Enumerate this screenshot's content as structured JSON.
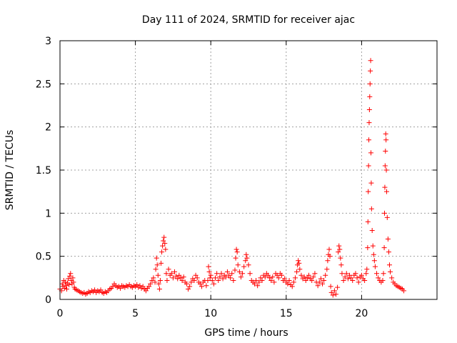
{
  "chart_data": {
    "type": "scatter",
    "title": "Day 111 of 2024, SRMTID for receiver ajac",
    "xlabel": "GPS time / hours",
    "ylabel": "SRMTID / TECUs",
    "xlim": [
      0,
      25
    ],
    "ylim": [
      0,
      3
    ],
    "grid": true,
    "marker": "+",
    "marker_color": "#ff0000",
    "x_ticks": [
      {
        "value": 0,
        "label": "0"
      },
      {
        "value": 5,
        "label": "5"
      },
      {
        "value": 10,
        "label": "10"
      },
      {
        "value": 15,
        "label": "15"
      },
      {
        "value": 20,
        "label": "20"
      }
    ],
    "y_ticks": [
      {
        "value": 0,
        "label": "0"
      },
      {
        "value": 0.5,
        "label": "0.5"
      },
      {
        "value": 1,
        "label": "1"
      },
      {
        "value": 1.5,
        "label": "1.5"
      },
      {
        "value": 2,
        "label": "2"
      },
      {
        "value": 2.5,
        "label": "2.5"
      },
      {
        "value": 3,
        "label": "3"
      }
    ],
    "series": [
      {
        "name": "SRMTID",
        "points": [
          [
            0.0,
            0.12
          ],
          [
            0.1,
            0.1
          ],
          [
            0.15,
            0.18
          ],
          [
            0.2,
            0.15
          ],
          [
            0.25,
            0.22
          ],
          [
            0.3,
            0.13
          ],
          [
            0.35,
            0.2
          ],
          [
            0.4,
            0.16
          ],
          [
            0.45,
            0.12
          ],
          [
            0.5,
            0.19
          ],
          [
            0.55,
            0.24
          ],
          [
            0.6,
            0.17
          ],
          [
            0.65,
            0.27
          ],
          [
            0.7,
            0.3
          ],
          [
            0.75,
            0.22
          ],
          [
            0.8,
            0.18
          ],
          [
            0.85,
            0.25
          ],
          [
            0.9,
            0.2
          ],
          [
            0.95,
            0.14
          ],
          [
            1.0,
            0.12
          ],
          [
            1.1,
            0.11
          ],
          [
            1.2,
            0.1
          ],
          [
            1.3,
            0.09
          ],
          [
            1.4,
            0.08
          ],
          [
            1.5,
            0.07
          ],
          [
            1.6,
            0.08
          ],
          [
            1.7,
            0.06
          ],
          [
            1.8,
            0.07
          ],
          [
            1.9,
            0.09
          ],
          [
            2.0,
            0.08
          ],
          [
            2.1,
            0.1
          ],
          [
            2.2,
            0.09
          ],
          [
            2.3,
            0.11
          ],
          [
            2.4,
            0.08
          ],
          [
            2.5,
            0.1
          ],
          [
            2.6,
            0.09
          ],
          [
            2.7,
            0.11
          ],
          [
            2.8,
            0.08
          ],
          [
            2.9,
            0.07
          ],
          [
            3.0,
            0.09
          ],
          [
            3.1,
            0.08
          ],
          [
            3.2,
            0.1
          ],
          [
            3.3,
            0.12
          ],
          [
            3.4,
            0.13
          ],
          [
            3.5,
            0.15
          ],
          [
            3.6,
            0.18
          ],
          [
            3.7,
            0.16
          ],
          [
            3.8,
            0.14
          ],
          [
            3.9,
            0.15
          ],
          [
            4.0,
            0.13
          ],
          [
            4.1,
            0.16
          ],
          [
            4.2,
            0.15
          ],
          [
            4.3,
            0.14
          ],
          [
            4.4,
            0.16
          ],
          [
            4.5,
            0.15
          ],
          [
            4.6,
            0.17
          ],
          [
            4.7,
            0.15
          ],
          [
            4.8,
            0.14
          ],
          [
            4.9,
            0.16
          ],
          [
            5.0,
            0.15
          ],
          [
            5.1,
            0.17
          ],
          [
            5.2,
            0.14
          ],
          [
            5.3,
            0.16
          ],
          [
            5.4,
            0.13
          ],
          [
            5.5,
            0.15
          ],
          [
            5.6,
            0.12
          ],
          [
            5.7,
            0.1
          ],
          [
            5.8,
            0.13
          ],
          [
            5.9,
            0.15
          ],
          [
            6.0,
            0.18
          ],
          [
            6.1,
            0.22
          ],
          [
            6.2,
            0.25
          ],
          [
            6.3,
            0.2
          ],
          [
            6.35,
            0.35
          ],
          [
            6.4,
            0.48
          ],
          [
            6.45,
            0.4
          ],
          [
            6.5,
            0.28
          ],
          [
            6.55,
            0.18
          ],
          [
            6.6,
            0.12
          ],
          [
            6.65,
            0.22
          ],
          [
            6.7,
            0.42
          ],
          [
            6.75,
            0.55
          ],
          [
            6.8,
            0.62
          ],
          [
            6.85,
            0.68
          ],
          [
            6.9,
            0.72
          ],
          [
            6.95,
            0.65
          ],
          [
            7.0,
            0.58
          ],
          [
            7.05,
            0.3
          ],
          [
            7.1,
            0.22
          ],
          [
            7.2,
            0.35
          ],
          [
            7.3,
            0.28
          ],
          [
            7.4,
            0.3
          ],
          [
            7.5,
            0.25
          ],
          [
            7.6,
            0.32
          ],
          [
            7.7,
            0.27
          ],
          [
            7.8,
            0.24
          ],
          [
            7.9,
            0.28
          ],
          [
            8.0,
            0.25
          ],
          [
            8.1,
            0.22
          ],
          [
            8.2,
            0.26
          ],
          [
            8.3,
            0.2
          ],
          [
            8.4,
            0.18
          ],
          [
            8.5,
            0.12
          ],
          [
            8.6,
            0.15
          ],
          [
            8.7,
            0.2
          ],
          [
            8.8,
            0.24
          ],
          [
            8.9,
            0.22
          ],
          [
            9.0,
            0.28
          ],
          [
            9.1,
            0.25
          ],
          [
            9.2,
            0.2
          ],
          [
            9.3,
            0.18
          ],
          [
            9.4,
            0.15
          ],
          [
            9.5,
            0.2
          ],
          [
            9.6,
            0.22
          ],
          [
            9.7,
            0.16
          ],
          [
            9.8,
            0.22
          ],
          [
            9.85,
            0.38
          ],
          [
            9.9,
            0.32
          ],
          [
            9.95,
            0.25
          ],
          [
            10.0,
            0.28
          ],
          [
            10.1,
            0.22
          ],
          [
            10.2,
            0.18
          ],
          [
            10.3,
            0.25
          ],
          [
            10.4,
            0.3
          ],
          [
            10.5,
            0.22
          ],
          [
            10.6,
            0.26
          ],
          [
            10.7,
            0.3
          ],
          [
            10.8,
            0.24
          ],
          [
            10.9,
            0.28
          ],
          [
            11.0,
            0.26
          ],
          [
            11.1,
            0.32
          ],
          [
            11.2,
            0.28
          ],
          [
            11.3,
            0.25
          ],
          [
            11.4,
            0.3
          ],
          [
            11.5,
            0.22
          ],
          [
            11.6,
            0.34
          ],
          [
            11.65,
            0.48
          ],
          [
            11.7,
            0.58
          ],
          [
            11.75,
            0.55
          ],
          [
            11.8,
            0.4
          ],
          [
            11.9,
            0.32
          ],
          [
            12.0,
            0.26
          ],
          [
            12.1,
            0.3
          ],
          [
            12.2,
            0.38
          ],
          [
            12.3,
            0.45
          ],
          [
            12.35,
            0.52
          ],
          [
            12.4,
            0.48
          ],
          [
            12.5,
            0.4
          ],
          [
            12.6,
            0.3
          ],
          [
            12.7,
            0.22
          ],
          [
            12.8,
            0.2
          ],
          [
            12.9,
            0.18
          ],
          [
            13.0,
            0.22
          ],
          [
            13.1,
            0.16
          ],
          [
            13.2,
            0.2
          ],
          [
            13.3,
            0.25
          ],
          [
            13.4,
            0.22
          ],
          [
            13.5,
            0.28
          ],
          [
            13.6,
            0.26
          ],
          [
            13.7,
            0.3
          ],
          [
            13.8,
            0.28
          ],
          [
            13.9,
            0.25
          ],
          [
            14.0,
            0.22
          ],
          [
            14.1,
            0.26
          ],
          [
            14.2,
            0.2
          ],
          [
            14.3,
            0.3
          ],
          [
            14.4,
            0.28
          ],
          [
            14.5,
            0.25
          ],
          [
            14.6,
            0.3
          ],
          [
            14.7,
            0.28
          ],
          [
            14.8,
            0.22
          ],
          [
            14.9,
            0.24
          ],
          [
            15.0,
            0.2
          ],
          [
            15.1,
            0.18
          ],
          [
            15.2,
            0.22
          ],
          [
            15.3,
            0.17
          ],
          [
            15.4,
            0.15
          ],
          [
            15.5,
            0.2
          ],
          [
            15.6,
            0.25
          ],
          [
            15.7,
            0.32
          ],
          [
            15.75,
            0.4
          ],
          [
            15.8,
            0.45
          ],
          [
            15.85,
            0.42
          ],
          [
            15.9,
            0.35
          ],
          [
            16.0,
            0.28
          ],
          [
            16.1,
            0.24
          ],
          [
            16.2,
            0.26
          ],
          [
            16.3,
            0.22
          ],
          [
            16.4,
            0.25
          ],
          [
            16.5,
            0.28
          ],
          [
            16.6,
            0.24
          ],
          [
            16.7,
            0.22
          ],
          [
            16.8,
            0.26
          ],
          [
            16.9,
            0.3
          ],
          [
            17.0,
            0.2
          ],
          [
            17.1,
            0.16
          ],
          [
            17.2,
            0.2
          ],
          [
            17.3,
            0.24
          ],
          [
            17.4,
            0.18
          ],
          [
            17.5,
            0.22
          ],
          [
            17.6,
            0.28
          ],
          [
            17.7,
            0.35
          ],
          [
            17.75,
            0.45
          ],
          [
            17.8,
            0.52
          ],
          [
            17.85,
            0.58
          ],
          [
            17.9,
            0.5
          ],
          [
            17.95,
            0.15
          ],
          [
            18.0,
            0.08
          ],
          [
            18.1,
            0.05
          ],
          [
            18.2,
            0.1
          ],
          [
            18.3,
            0.06
          ],
          [
            18.4,
            0.14
          ],
          [
            18.45,
            0.55
          ],
          [
            18.5,
            0.62
          ],
          [
            18.55,
            0.58
          ],
          [
            18.6,
            0.48
          ],
          [
            18.65,
            0.4
          ],
          [
            18.7,
            0.3
          ],
          [
            18.8,
            0.22
          ],
          [
            18.9,
            0.26
          ],
          [
            19.0,
            0.3
          ],
          [
            19.1,
            0.24
          ],
          [
            19.2,
            0.28
          ],
          [
            19.3,
            0.25
          ],
          [
            19.4,
            0.22
          ],
          [
            19.5,
            0.28
          ],
          [
            19.6,
            0.3
          ],
          [
            19.7,
            0.25
          ],
          [
            19.8,
            0.2
          ],
          [
            19.9,
            0.26
          ],
          [
            20.0,
            0.28
          ],
          [
            20.1,
            0.24
          ],
          [
            20.2,
            0.22
          ],
          [
            20.3,
            0.3
          ],
          [
            20.35,
            0.35
          ],
          [
            20.4,
            0.6
          ],
          [
            20.42,
            0.9
          ],
          [
            20.44,
            1.25
          ],
          [
            20.46,
            1.55
          ],
          [
            20.48,
            1.85
          ],
          [
            20.5,
            2.05
          ],
          [
            20.52,
            2.2
          ],
          [
            20.54,
            2.35
          ],
          [
            20.56,
            2.5
          ],
          [
            20.58,
            2.65
          ],
          [
            20.6,
            2.77
          ],
          [
            20.62,
            1.7
          ],
          [
            20.64,
            1.35
          ],
          [
            20.66,
            1.05
          ],
          [
            20.7,
            0.8
          ],
          [
            20.75,
            0.62
          ],
          [
            20.8,
            0.52
          ],
          [
            20.85,
            0.45
          ],
          [
            20.9,
            0.38
          ],
          [
            21.0,
            0.3
          ],
          [
            21.1,
            0.25
          ],
          [
            21.2,
            0.22
          ],
          [
            21.3,
            0.2
          ],
          [
            21.4,
            0.22
          ],
          [
            21.45,
            0.3
          ],
          [
            21.5,
            0.6
          ],
          [
            21.52,
            1.0
          ],
          [
            21.54,
            1.3
          ],
          [
            21.56,
            1.55
          ],
          [
            21.58,
            1.72
          ],
          [
            21.6,
            1.92
          ],
          [
            21.62,
            1.85
          ],
          [
            21.64,
            1.5
          ],
          [
            21.66,
            1.25
          ],
          [
            21.7,
            0.95
          ],
          [
            21.75,
            0.7
          ],
          [
            21.8,
            0.55
          ],
          [
            21.85,
            0.4
          ],
          [
            21.9,
            0.32
          ],
          [
            22.0,
            0.25
          ],
          [
            22.1,
            0.2
          ],
          [
            22.2,
            0.18
          ],
          [
            22.3,
            0.16
          ],
          [
            22.4,
            0.15
          ],
          [
            22.5,
            0.14
          ],
          [
            22.6,
            0.13
          ],
          [
            22.7,
            0.12
          ],
          [
            22.8,
            0.1
          ]
        ]
      }
    ]
  }
}
